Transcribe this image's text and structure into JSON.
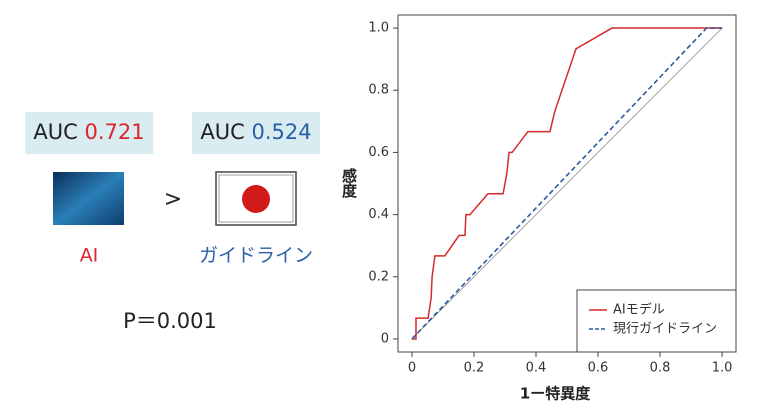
{
  "panel": {
    "ai": {
      "auc_label": "AUC",
      "auc": 0.721,
      "label": "AI"
    },
    "guideline": {
      "auc_label": "AUC",
      "auc": 0.524,
      "label": "ガイドライン"
    },
    "comparison": ">",
    "p_value": "P＝0.001"
  },
  "chart_data": {
    "type": "line",
    "xlabel": "1ー特異度",
    "ylabel": "感度",
    "xlim": [
      -0.045,
      1.045
    ],
    "ylim": [
      -0.042,
      1.042
    ],
    "xticks": [
      0,
      0.2,
      0.4,
      0.6,
      0.8,
      {
        "value": 1,
        "label": "1.0"
      }
    ],
    "yticks": [
      0,
      0.2,
      0.4,
      0.6,
      0.8,
      {
        "value": 1,
        "label": "1.0"
      }
    ],
    "legend": "lower right",
    "series": [
      {
        "name": "AIモデル",
        "color": "#d42a2a",
        "dash": false,
        "x": [
          0,
          0.013,
          0.013,
          0.052,
          0.062,
          0.065,
          0.074,
          0.106,
          0.152,
          0.171,
          0.174,
          0.187,
          0.245,
          0.294,
          0.306,
          0.313,
          0.323,
          0.374,
          0.445,
          0.461,
          0.529,
          0.645,
          1
        ],
        "values": [
          0,
          0,
          0.067,
          0.067,
          0.133,
          0.2,
          0.267,
          0.267,
          0.333,
          0.333,
          0.4,
          0.4,
          0.467,
          0.467,
          0.533,
          0.6,
          0.6,
          0.667,
          0.667,
          0.733,
          0.933,
          1,
          1
        ]
      },
      {
        "name": "現行ガイドライン",
        "color": "#2c5aa0",
        "dash": true,
        "x": [
          0,
          0.95,
          1
        ],
        "values": [
          0,
          1,
          1
        ]
      }
    ]
  }
}
